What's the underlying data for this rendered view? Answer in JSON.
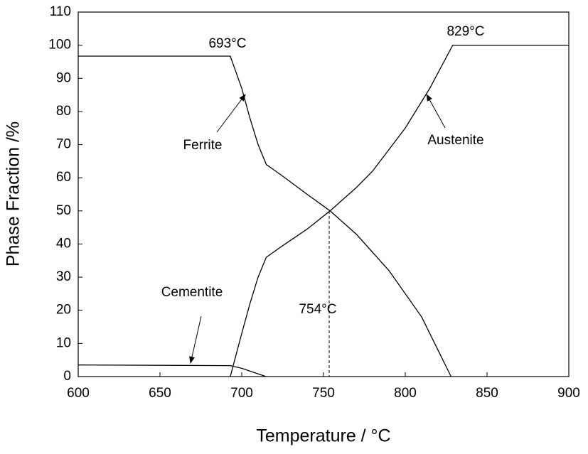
{
  "chart_data": {
    "type": "line",
    "xlabel": "Temperature / °C",
    "ylabel": "Phase Fraction /%",
    "xlim": [
      600,
      900
    ],
    "xticks": [
      600,
      650,
      700,
      750,
      800,
      850,
      900
    ],
    "ylim": [
      0,
      110
    ],
    "yticks": [
      0,
      10,
      20,
      30,
      40,
      50,
      60,
      70,
      80,
      90,
      100,
      110
    ],
    "grid": false,
    "annotations": [
      "693°C",
      "829°C",
      "Ferrite",
      "Austenite",
      "Cementite",
      "754°C"
    ],
    "series": [
      {
        "name": "Ferrite",
        "color": "#000000",
        "x": [
          600,
          690,
          693,
          700,
          705,
          710,
          715,
          725,
          740,
          754,
          770,
          790,
          810,
          820,
          828
        ],
        "values": [
          96.7,
          96.7,
          96.7,
          87,
          78,
          70,
          64,
          60.5,
          55,
          50,
          43,
          32,
          18,
          8,
          0
        ]
      },
      {
        "name": "Austenite",
        "color": "#000000",
        "x": [
          693,
          700,
          705,
          710,
          715,
          725,
          740,
          754,
          770,
          780,
          800,
          815,
          829,
          900
        ],
        "values": [
          0,
          13,
          22,
          30,
          36,
          39.5,
          44.5,
          50,
          57,
          62,
          75,
          87,
          100,
          100
        ]
      },
      {
        "name": "Cementite",
        "color": "#000000",
        "x": [
          600,
          693,
          700,
          710,
          715
        ],
        "values": [
          3.5,
          3.3,
          2.5,
          0.8,
          0
        ]
      }
    ]
  }
}
